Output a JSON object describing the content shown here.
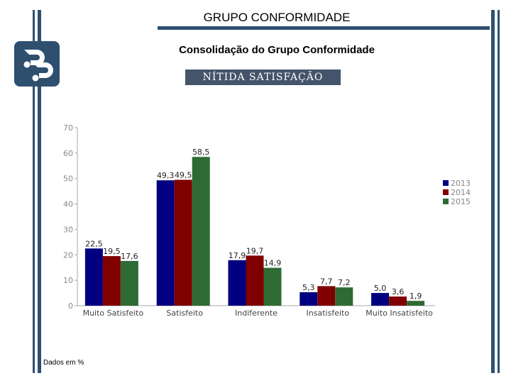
{
  "header": {
    "title": "GRUPO CONFORMIDADE",
    "subtitle": "Consolidação do Grupo Conformidade",
    "heading": "NÍTIDA SATISFAÇÃO"
  },
  "footnote": "Dados em %",
  "logo": {
    "icon": "pp-logo-icon",
    "color": "#2f4f6f"
  },
  "chart_data": {
    "type": "bar",
    "categories": [
      "Muito Satisfeito",
      "Satisfeito",
      "Indiferente",
      "Insatisfeito",
      "Muito Insatisfeito"
    ],
    "series": [
      {
        "name": "2013",
        "color": "#000080",
        "values": [
          22.5,
          49.3,
          17.9,
          5.3,
          5.0
        ]
      },
      {
        "name": "2014",
        "color": "#800000",
        "values": [
          19.5,
          49.5,
          19.7,
          7.7,
          3.6
        ]
      },
      {
        "name": "2015",
        "color": "#2e6b34",
        "values": [
          17.6,
          58.5,
          14.9,
          7.2,
          1.9
        ]
      }
    ],
    "data_labels": [
      [
        "22,5",
        "49,3",
        "17,9",
        "5,3",
        "5,0"
      ],
      [
        "19,5",
        "49,5",
        "19,7",
        "7,7",
        "3,6"
      ],
      [
        "17,6",
        "58,5",
        "14,9",
        "7,2",
        "1,9"
      ]
    ],
    "yticks": [
      0,
      10,
      20,
      30,
      40,
      50,
      60,
      70
    ],
    "ylim": [
      0,
      70
    ],
    "grid": false,
    "legend": "right"
  }
}
